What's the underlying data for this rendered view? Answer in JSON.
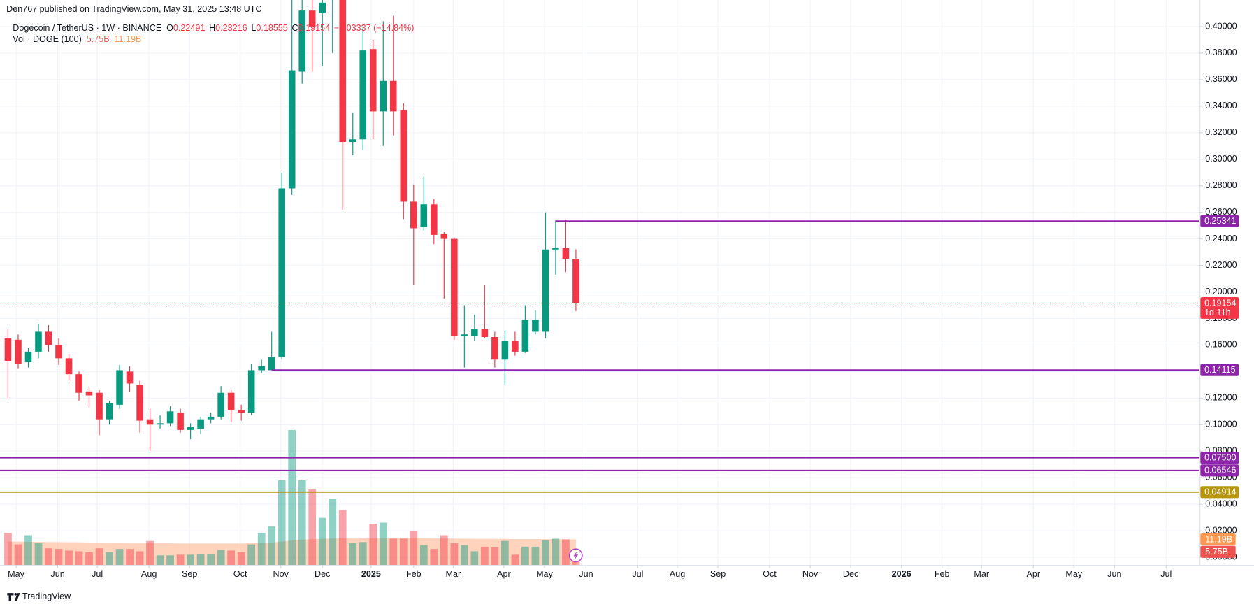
{
  "chart_data": {
    "type": "candlestick",
    "header": "Den767 published on TradingView.com, May 31, 2025 13:48 UTC",
    "symbol": "Dogecoin / TetherUS · 1W · BINANCE",
    "ohlc_labels": [
      "O",
      "H",
      "L",
      "C"
    ],
    "ohlc_values": [
      "0.22491",
      "0.23216",
      "0.18555",
      "0.19154"
    ],
    "change": "−0.03337 (−14.84%)",
    "footer": "TradingView",
    "up_color": "#089981",
    "down_color": "#f23645",
    "x": [
      0,
      1,
      2,
      3,
      4,
      5,
      6,
      7,
      8,
      9,
      10,
      11,
      12,
      13,
      14,
      15,
      16,
      17,
      18,
      19,
      20,
      21,
      22,
      23,
      24,
      25,
      26,
      27,
      28,
      29,
      30,
      31,
      32,
      33,
      34,
      35,
      36,
      37,
      38,
      39,
      40,
      41,
      42,
      43,
      44,
      45,
      46,
      47,
      48,
      49,
      50,
      51,
      52,
      53,
      54,
      55,
      56
    ],
    "open": [
      0.165,
      0.164,
      0.147,
      0.155,
      0.17,
      0.16,
      0.15,
      0.138,
      0.125,
      0.124,
      0.104,
      0.115,
      0.14,
      0.13,
      0.104,
      0.1,
      0.101,
      0.109,
      0.096,
      0.097,
      0.104,
      0.106,
      0.124,
      0.111,
      0.109,
      0.141,
      0.141,
      0.151,
      0.278,
      0.366,
      0.412,
      0.41,
      0.42,
      0.43,
      0.313,
      0.315,
      0.383,
      0.336,
      0.359,
      0.337,
      0.268,
      0.249,
      0.266,
      0.244,
      0.24,
      0.167,
      0.167,
      0.172,
      0.166,
      0.149,
      0.163,
      0.155,
      0.17,
      0.17,
      0.232,
      0.233,
      0.22491
    ],
    "high": [
      0.172,
      0.168,
      0.158,
      0.176,
      0.175,
      0.165,
      0.153,
      0.14,
      0.128,
      0.126,
      0.118,
      0.145,
      0.144,
      0.133,
      0.112,
      0.107,
      0.114,
      0.112,
      0.101,
      0.106,
      0.109,
      0.129,
      0.126,
      0.115,
      0.146,
      0.149,
      0.17,
      0.29,
      0.425,
      0.435,
      0.48,
      0.44,
      0.48,
      0.484,
      0.335,
      0.4,
      0.39,
      0.404,
      0.408,
      0.342,
      0.281,
      0.287,
      0.27,
      0.245,
      0.241,
      0.19,
      0.183,
      0.205,
      0.17,
      0.171,
      0.17,
      0.19,
      0.186,
      0.26,
      0.254,
      0.254,
      0.23216
    ],
    "low": [
      0.12,
      0.142,
      0.143,
      0.15,
      0.155,
      0.145,
      0.133,
      0.118,
      0.113,
      0.092,
      0.1,
      0.112,
      0.125,
      0.094,
      0.08,
      0.097,
      0.099,
      0.094,
      0.089,
      0.093,
      0.101,
      0.104,
      0.102,
      0.103,
      0.107,
      0.139,
      0.141,
      0.149,
      0.273,
      0.357,
      0.366,
      0.37,
      0.38,
      0.262,
      0.303,
      0.307,
      0.315,
      0.31,
      0.318,
      0.255,
      0.205,
      0.246,
      0.236,
      0.195,
      0.164,
      0.143,
      0.163,
      0.165,
      0.143,
      0.13,
      0.152,
      0.154,
      0.168,
      0.165,
      0.213,
      0.215,
      0.18555
    ],
    "close": [
      0.148,
      0.146,
      0.155,
      0.17,
      0.16,
      0.15,
      0.138,
      0.124,
      0.122,
      0.104,
      0.116,
      0.141,
      0.131,
      0.103,
      0.1,
      0.101,
      0.11,
      0.096,
      0.098,
      0.104,
      0.106,
      0.124,
      0.111,
      0.109,
      0.141,
      0.144,
      0.151,
      0.278,
      0.367,
      0.412,
      0.4,
      0.418,
      0.43,
      0.313,
      0.315,
      0.382,
      0.336,
      0.359,
      0.336,
      0.268,
      0.248,
      0.266,
      0.243,
      0.24,
      0.167,
      0.168,
      0.172,
      0.166,
      0.149,
      0.163,
      0.155,
      0.179,
      0.179,
      0.232,
      0.233,
      0.225,
      0.19154
    ],
    "volume": {
      "name": "Vol · DOGE (100)",
      "values": [
        14,
        9,
        13,
        9.5,
        7.3,
        7,
        6.3,
        6,
        5.6,
        7.3,
        5.6,
        7,
        7,
        6,
        10.5,
        4.2,
        4.2,
        4.5,
        4.5,
        4.9,
        4.9,
        6.6,
        6.3,
        5.6,
        9,
        14,
        16.8,
        37,
        59,
        37,
        33,
        20.6,
        29,
        24,
        9.5,
        10,
        18,
        18.5,
        11.5,
        11.5,
        14.7,
        8.7,
        7,
        13,
        9.5,
        8.7,
        6,
        8,
        7.7,
        10.5,
        4.5,
        8,
        8,
        10.8,
        11.5,
        11.2,
        5.75
      ],
      "last_label": "5.75B",
      "ma_values": [
        10.2,
        10.2,
        10.1,
        10.1,
        10.0,
        10.0,
        9.9,
        9.9,
        9.8,
        9.8,
        9.7,
        9.7,
        9.6,
        9.6,
        9.6,
        9.5,
        9.5,
        9.4,
        9.4,
        9.4,
        9.4,
        9.4,
        9.4,
        9.4,
        9.5,
        9.6,
        9.8,
        10.2,
        10.8,
        11.1,
        11.3,
        11.4,
        11.6,
        11.7,
        11.6,
        11.6,
        11.7,
        11.8,
        11.8,
        11.8,
        11.8,
        11.7,
        11.6,
        11.6,
        11.5,
        11.5,
        11.4,
        11.4,
        11.4,
        11.4,
        11.3,
        11.3,
        11.3,
        11.3,
        11.3,
        11.2,
        11.19
      ],
      "ma_label": "11.19B",
      "ma_color": "#ff9e6b",
      "ylim": [
        0,
        247
      ]
    },
    "levels": [
      {
        "value": 0.25341,
        "label": "0.25341",
        "color": "#8e24aa",
        "from": 54
      },
      {
        "value": 0.14115,
        "label": "0.14115",
        "color": "#8e24aa",
        "from": 26
      },
      {
        "value": 0.075,
        "label": "0.07500",
        "color": "#8e24aa"
      },
      {
        "value": 0.06546,
        "label": "0.06546",
        "color": "#8e24aa"
      },
      {
        "value": 0.04914,
        "label": "0.04914",
        "color": "#b8960c"
      }
    ],
    "current": {
      "value": 0.19154,
      "label": "0.19154",
      "countdown": "1d 11h"
    },
    "xlim": [
      -0.79,
      117.5
    ],
    "xticks": [
      {
        "value": 0.8,
        "label": "May"
      },
      {
        "value": 4.9,
        "label": "Jun"
      },
      {
        "value": 8.8,
        "label": "Jul"
      },
      {
        "value": 13.9,
        "label": "Aug"
      },
      {
        "value": 17.9,
        "label": "Sep"
      },
      {
        "value": 22.9,
        "label": "Oct"
      },
      {
        "value": 26.9,
        "label": "Nov"
      },
      {
        "value": 31,
        "label": "Dec"
      },
      {
        "value": 35.8,
        "label": "2025"
      },
      {
        "value": 40,
        "label": "Feb"
      },
      {
        "value": 43.9,
        "label": "Mar"
      },
      {
        "value": 48.9,
        "label": "Apr"
      },
      {
        "value": 52.9,
        "label": "May"
      },
      {
        "value": 57,
        "label": "Jun"
      },
      {
        "value": 62.1,
        "label": "Jul"
      },
      {
        "value": 66,
        "label": "Aug"
      },
      {
        "value": 70,
        "label": "Sep"
      },
      {
        "value": 75.1,
        "label": "Oct"
      },
      {
        "value": 79.1,
        "label": "Nov"
      },
      {
        "value": 83.1,
        "label": "Dec"
      },
      {
        "value": 88.1,
        "label": "2026"
      },
      {
        "value": 92.1,
        "label": "Feb"
      },
      {
        "value": 96,
        "label": "Mar"
      },
      {
        "value": 101.1,
        "label": "Apr"
      },
      {
        "value": 105.1,
        "label": "May"
      },
      {
        "value": 109.1,
        "label": "Jun"
      },
      {
        "value": 114.2,
        "label": "Jul"
      }
    ],
    "ylim": [
      -0.0058,
      0.42
    ],
    "yticks": [
      {
        "value": 0.4,
        "label": "0.40000"
      },
      {
        "value": 0.38,
        "label": "0.38000"
      },
      {
        "value": 0.36,
        "label": "0.36000"
      },
      {
        "value": 0.34,
        "label": "0.34000"
      },
      {
        "value": 0.32,
        "label": "0.32000"
      },
      {
        "value": 0.3,
        "label": "0.30000"
      },
      {
        "value": 0.28,
        "label": "0.28000"
      },
      {
        "value": 0.26,
        "label": "0.26000"
      },
      {
        "value": 0.24,
        "label": "0.24000"
      },
      {
        "value": 0.22,
        "label": "0.22000"
      },
      {
        "value": 0.2,
        "label": "0.20000"
      },
      {
        "value": 0.18,
        "label": "0.18000"
      },
      {
        "value": 0.16,
        "label": "0.16000"
      },
      {
        "value": 0.14,
        "label": "0.14000"
      },
      {
        "value": 0.12,
        "label": "0.12000"
      },
      {
        "value": 0.1,
        "label": "0.10000"
      },
      {
        "value": 0.08,
        "label": "0.08000"
      },
      {
        "value": 0.06,
        "label": "0.06000"
      },
      {
        "value": 0.04,
        "label": "0.04000"
      },
      {
        "value": 0.02,
        "label": "0.02000"
      },
      {
        "value": 0,
        "label": "0.00000"
      }
    ],
    "grid": true
  }
}
